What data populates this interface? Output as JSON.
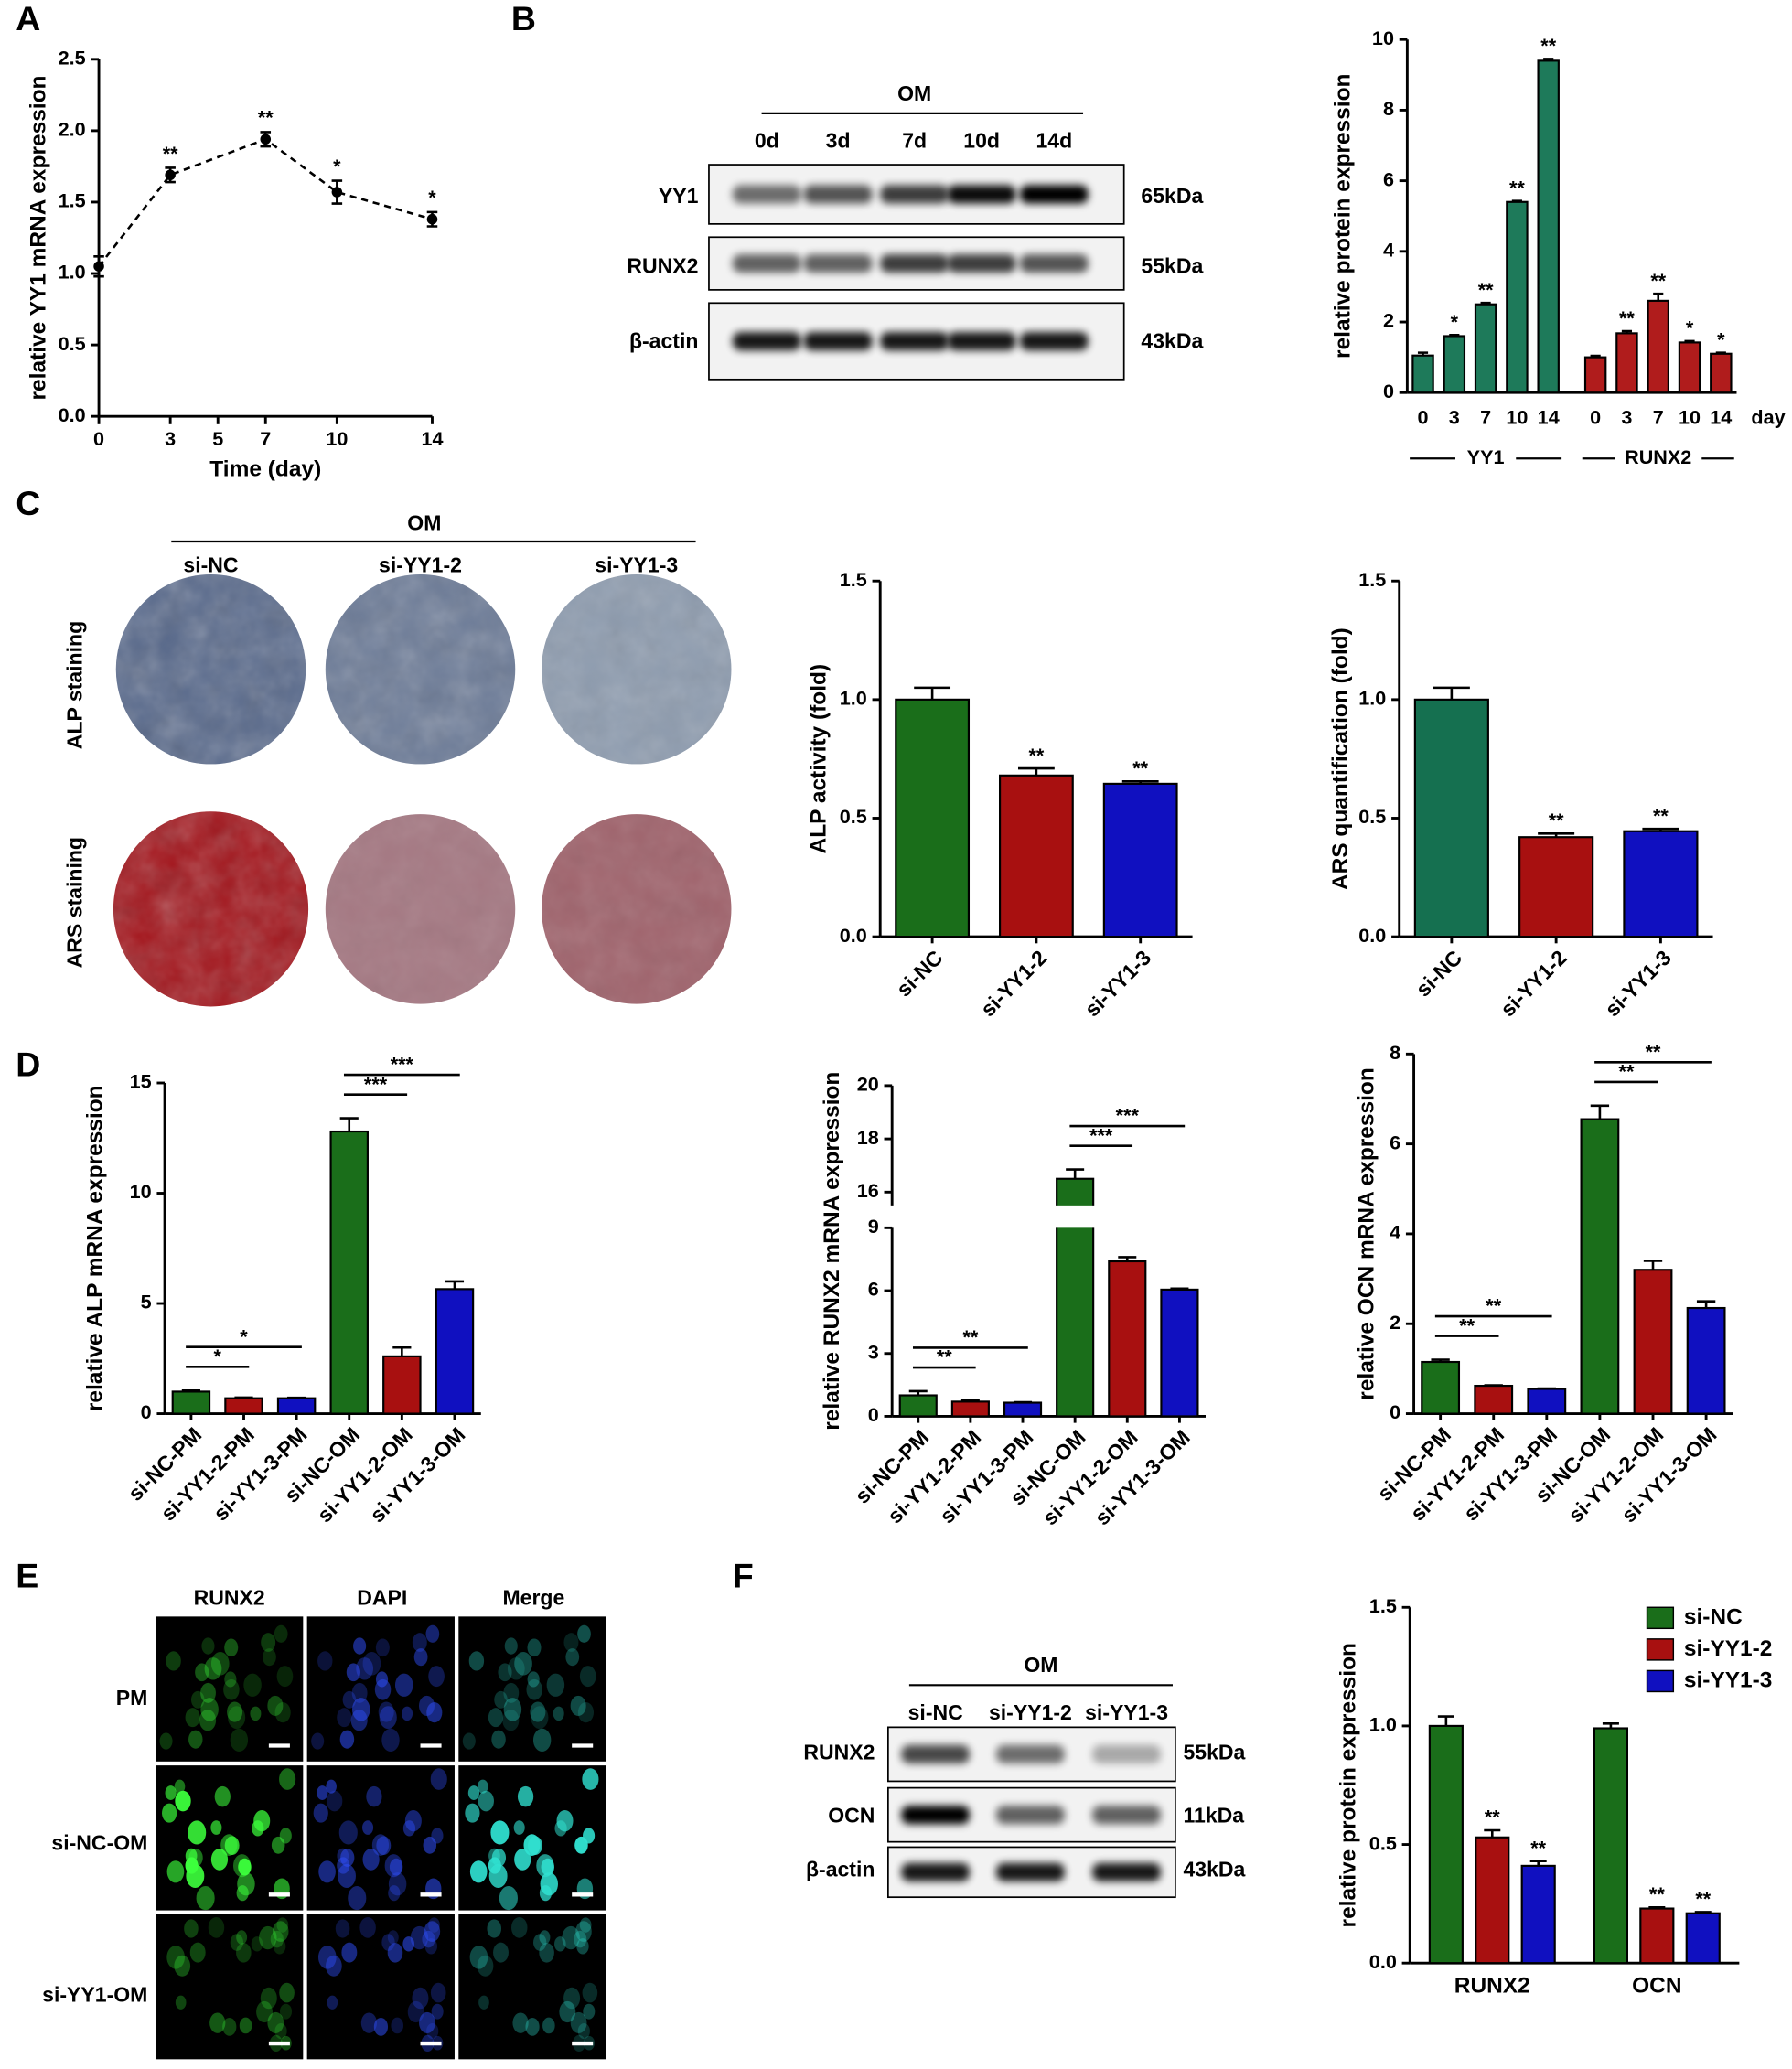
{
  "panel_labels": [
    "A",
    "B",
    "C",
    "D",
    "E",
    "F"
  ],
  "blot_B": {
    "header": "OM",
    "lanes": [
      "0d",
      "3d",
      "7d",
      "10d",
      "14d"
    ],
    "rows": [
      {
        "label": "YY1",
        "size": "65kDa"
      },
      {
        "label": "RUNX2",
        "size": "55kDa"
      },
      {
        "label": "β-actin",
        "size": "43kDa"
      }
    ]
  },
  "staining_C": {
    "header": "OM",
    "columns": [
      "si-NC",
      "si-YY1-2",
      "si-YY1-3"
    ],
    "rows": [
      "ALP staining",
      "ARS staining"
    ]
  },
  "immunofluorescence_E": {
    "columns": [
      "RUNX2",
      "DAPI",
      "Merge"
    ],
    "rows": [
      "PM",
      "si-NC-OM",
      "si-YY1-OM"
    ]
  },
  "blot_F": {
    "header": "OM",
    "lanes": [
      "si-NC",
      "si-YY1-2",
      "si-YY1-3"
    ],
    "rows": [
      {
        "label": "RUNX2",
        "size": "55kDa"
      },
      {
        "label": "OCN",
        "size": "11kDa"
      },
      {
        "label": "β-actin",
        "size": "43kDa"
      }
    ]
  },
  "chart_data": [
    {
      "type": "line",
      "ylabel": "relative YY1 mRNA expression",
      "xlabel": "Time (day)",
      "x": [
        0,
        3,
        7,
        10,
        14
      ],
      "values": [
        1.05,
        1.69,
        1.94,
        1.57,
        1.38
      ],
      "errors": [
        0.07,
        0.05,
        0.05,
        0.08,
        0.05
      ],
      "annotations": [
        null,
        "**",
        "**",
        "*",
        "*"
      ],
      "color": "#000000",
      "line_style": "dashed",
      "xlim": [
        0,
        14
      ],
      "xticks": [
        0,
        3,
        5,
        7,
        10,
        14
      ],
      "ylim": [
        0,
        2.5
      ],
      "yticks": [
        {
          "value": 0,
          "label": "0.0"
        },
        {
          "value": 0.5,
          "label": "0.5"
        },
        {
          "value": 1,
          "label": "1.0"
        },
        {
          "value": 1.5,
          "label": "1.5"
        },
        {
          "value": 2,
          "label": "2.0"
        },
        {
          "value": 2.5,
          "label": "2.5"
        }
      ]
    },
    {
      "type": "bar",
      "ylabel": "relative protein expression",
      "xlabel": "day",
      "categories": [
        "0",
        "3",
        "7",
        "10",
        "14"
      ],
      "series": [
        {
          "name": "YY1",
          "color": "#1e7a5a",
          "values": [
            1.05,
            1.6,
            2.5,
            5.4,
            9.4
          ],
          "errors": [
            0.08,
            0.03,
            0.04,
            0.03,
            0.05
          ],
          "annotations": [
            null,
            "*",
            "**",
            "**",
            "**"
          ]
        },
        {
          "name": "RUNX2",
          "color": "#b01c1c",
          "values": [
            1.0,
            1.68,
            2.6,
            1.42,
            1.1
          ],
          "errors": [
            0.04,
            0.06,
            0.2,
            0.04,
            0.03
          ],
          "annotations": [
            null,
            "**",
            "**",
            "*",
            "*"
          ]
        }
      ],
      "ylim": [
        0,
        10
      ],
      "yticks": [
        0,
        2,
        4,
        6,
        8,
        10
      ]
    },
    {
      "type": "bar",
      "ylabel": "ALP activity (fold)",
      "categories": [
        "si-NC",
        "si-YY1-2",
        "si-YY1-3"
      ],
      "values": [
        1.0,
        0.68,
        0.645
      ],
      "errors": [
        0.05,
        0.03,
        0.01
      ],
      "annotations": [
        null,
        "**",
        "**"
      ],
      "colors": [
        "#1a6e1a",
        "#a81010",
        "#1010c0"
      ],
      "ylim": [
        0,
        1.5
      ],
      "yticks": [
        {
          "value": 0,
          "label": "0.0"
        },
        {
          "value": 0.5,
          "label": "0.5"
        },
        {
          "value": 1,
          "label": "1.0"
        },
        {
          "value": 1.5,
          "label": "1.5"
        }
      ]
    },
    {
      "type": "bar",
      "ylabel": "ARS quantification (fold)",
      "categories": [
        "si-NC",
        "si-YY1-2",
        "si-YY1-3"
      ],
      "values": [
        1.0,
        0.42,
        0.445
      ],
      "errors": [
        0.05,
        0.015,
        0.01
      ],
      "annotations": [
        null,
        "**",
        "**"
      ],
      "colors": [
        "#157050",
        "#a81010",
        "#1010c0"
      ],
      "ylim": [
        0,
        1.5
      ],
      "yticks": [
        {
          "value": 0,
          "label": "0.0"
        },
        {
          "value": 0.5,
          "label": "0.5"
        },
        {
          "value": 1,
          "label": "1.0"
        },
        {
          "value": 1.5,
          "label": "1.5"
        }
      ]
    },
    {
      "type": "bar",
      "ylabel": "relative ALP mRNA expression",
      "categories": [
        "si-NC-PM",
        "si-YY1-2-PM",
        "si-YY1-3-PM",
        "si-NC-OM",
        "si-YY1-2-OM",
        "si-YY1-3-OM"
      ],
      "values": [
        1.0,
        0.7,
        0.7,
        12.8,
        2.6,
        5.65
      ],
      "errors": [
        0.05,
        0.03,
        0.02,
        0.6,
        0.4,
        0.35
      ],
      "colors": [
        "#1a6e1a",
        "#a81010",
        "#1010c0",
        "#1a6e1a",
        "#a81010",
        "#1010c0"
      ],
      "comparisons": [
        {
          "between": [
            "si-NC-PM",
            "si-YY1-2-PM"
          ],
          "label": "*"
        },
        {
          "between": [
            "si-NC-PM",
            "si-YY1-3-PM"
          ],
          "label": "*"
        },
        {
          "between": [
            "si-NC-OM",
            "si-YY1-2-OM"
          ],
          "label": "***"
        },
        {
          "between": [
            "si-NC-OM",
            "si-YY1-3-OM"
          ],
          "label": "***"
        }
      ],
      "ylim": [
        0,
        15
      ],
      "yticks": [
        0,
        5,
        10,
        15
      ]
    },
    {
      "type": "bar",
      "ylabel": "relative RUNX2 mRNA expression",
      "categories": [
        "si-NC-PM",
        "si-YY1-2-PM",
        "si-YY1-3-PM",
        "si-NC-OM",
        "si-YY1-2-OM",
        "si-YY1-3-OM"
      ],
      "values": [
        1.0,
        0.7,
        0.65,
        16.5,
        7.4,
        6.05
      ],
      "errors": [
        0.2,
        0.05,
        0.02,
        0.35,
        0.2,
        0.05
      ],
      "colors": [
        "#1a6e1a",
        "#a81010",
        "#1010c0",
        "#1a6e1a",
        "#a81010",
        "#1010c0"
      ],
      "comparisons": [
        {
          "between": [
            "si-NC-PM",
            "si-YY1-2-PM"
          ],
          "label": "**"
        },
        {
          "between": [
            "si-NC-PM",
            "si-YY1-3-PM"
          ],
          "label": "**"
        },
        {
          "between": [
            "si-NC-OM",
            "si-YY1-2-OM"
          ],
          "label": "***"
        },
        {
          "between": [
            "si-NC-OM",
            "si-YY1-3-OM"
          ],
          "label": "***"
        }
      ],
      "ylim": [
        0,
        20
      ],
      "ybreak": [
        9,
        15.5
      ],
      "yticks": [
        0,
        3,
        6,
        9,
        16,
        18,
        20
      ]
    },
    {
      "type": "bar",
      "ylabel": "relative OCN mRNA expression",
      "categories": [
        "si-NC-PM",
        "si-YY1-2-PM",
        "si-YY1-3-PM",
        "si-NC-OM",
        "si-YY1-2-OM",
        "si-YY1-3-OM"
      ],
      "values": [
        1.15,
        0.62,
        0.55,
        6.55,
        3.2,
        2.35
      ],
      "errors": [
        0.05,
        0.01,
        0.01,
        0.3,
        0.2,
        0.15
      ],
      "colors": [
        "#1a6e1a",
        "#a81010",
        "#1010c0",
        "#1a6e1a",
        "#a81010",
        "#1010c0"
      ],
      "comparisons": [
        {
          "between": [
            "si-NC-PM",
            "si-YY1-2-PM"
          ],
          "label": "**"
        },
        {
          "between": [
            "si-NC-PM",
            "si-YY1-3-PM"
          ],
          "label": "**"
        },
        {
          "between": [
            "si-NC-OM",
            "si-YY1-2-OM"
          ],
          "label": "**"
        },
        {
          "between": [
            "si-NC-OM",
            "si-YY1-3-OM"
          ],
          "label": "**"
        }
      ],
      "ylim": [
        0,
        8
      ],
      "yticks": [
        0,
        2,
        4,
        6,
        8
      ]
    },
    {
      "type": "bar",
      "ylabel": "relative protein expression",
      "categories": [
        "RUNX2",
        "OCN"
      ],
      "legend": "top-right",
      "series": [
        {
          "name": "si-NC",
          "color": "#1a6e1a",
          "values": [
            1.0,
            0.99
          ],
          "errors": [
            0.04,
            0.02
          ]
        },
        {
          "name": "si-YY1-2",
          "color": "#a81010",
          "values": [
            0.53,
            0.23
          ],
          "errors": [
            0.03,
            0.005
          ],
          "annotations": [
            "**",
            "**"
          ]
        },
        {
          "name": "si-YY1-3",
          "color": "#1010c0",
          "values": [
            0.41,
            0.21
          ],
          "errors": [
            0.02,
            0.005
          ],
          "annotations": [
            "**",
            "**"
          ]
        }
      ],
      "ylim": [
        0,
        1.5
      ],
      "yticks": [
        {
          "value": 0,
          "label": "0.0"
        },
        {
          "value": 0.5,
          "label": "0.5"
        },
        {
          "value": 1,
          "label": "1.0"
        },
        {
          "value": 1.5,
          "label": "1.5"
        }
      ]
    }
  ]
}
